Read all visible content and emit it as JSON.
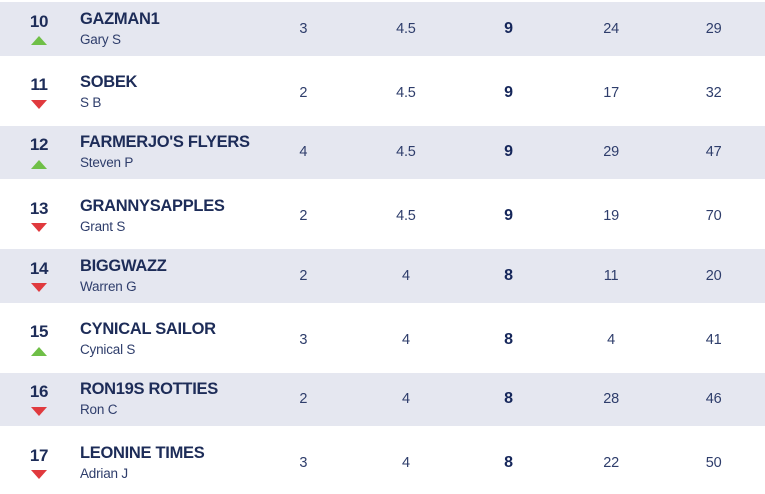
{
  "colors": {
    "row_shaded": "#e5e7f0",
    "text_primary": "#1d2c58",
    "text_secondary": "#2e3d6b",
    "stat_bold": "#15265a",
    "arrow_up": "#6fbf47",
    "arrow_down": "#e03a3e",
    "page_bg": "#ffffff"
  },
  "table": {
    "rows": [
      {
        "rank": "10",
        "movement": "up",
        "team": "GAZMAN1",
        "manager": "Gary S",
        "stats": [
          "3",
          "4.5",
          "9",
          "24",
          "29"
        ],
        "shaded": true
      },
      {
        "rank": "11",
        "movement": "down",
        "team": "SOBEK",
        "manager": "S B",
        "stats": [
          "2",
          "4.5",
          "9",
          "17",
          "32"
        ],
        "shaded": false
      },
      {
        "rank": "12",
        "movement": "up",
        "team": "FARMERJO'S FLYERS",
        "manager": "Steven P",
        "stats": [
          "4",
          "4.5",
          "9",
          "29",
          "47"
        ],
        "shaded": true
      },
      {
        "rank": "13",
        "movement": "down",
        "team": "GRANNYSAPPLES",
        "manager": "Grant S",
        "stats": [
          "2",
          "4.5",
          "9",
          "19",
          "70"
        ],
        "shaded": false
      },
      {
        "rank": "14",
        "movement": "down",
        "team": "BIGGWAZZ",
        "manager": "Warren G",
        "stats": [
          "2",
          "4",
          "8",
          "11",
          "20"
        ],
        "shaded": true
      },
      {
        "rank": "15",
        "movement": "up",
        "team": "CYNICAL SAILOR",
        "manager": "Cynical S",
        "stats": [
          "3",
          "4",
          "8",
          "4",
          "41"
        ],
        "shaded": false
      },
      {
        "rank": "16",
        "movement": "down",
        "team": "RON19S ROTTIES",
        "manager": "Ron C",
        "stats": [
          "2",
          "4",
          "8",
          "28",
          "46"
        ],
        "shaded": true
      },
      {
        "rank": "17",
        "movement": "down",
        "team": "LEONINE TIMES",
        "manager": "Adrian J",
        "stats": [
          "3",
          "4",
          "8",
          "22",
          "50"
        ],
        "shaded": false
      }
    ]
  }
}
